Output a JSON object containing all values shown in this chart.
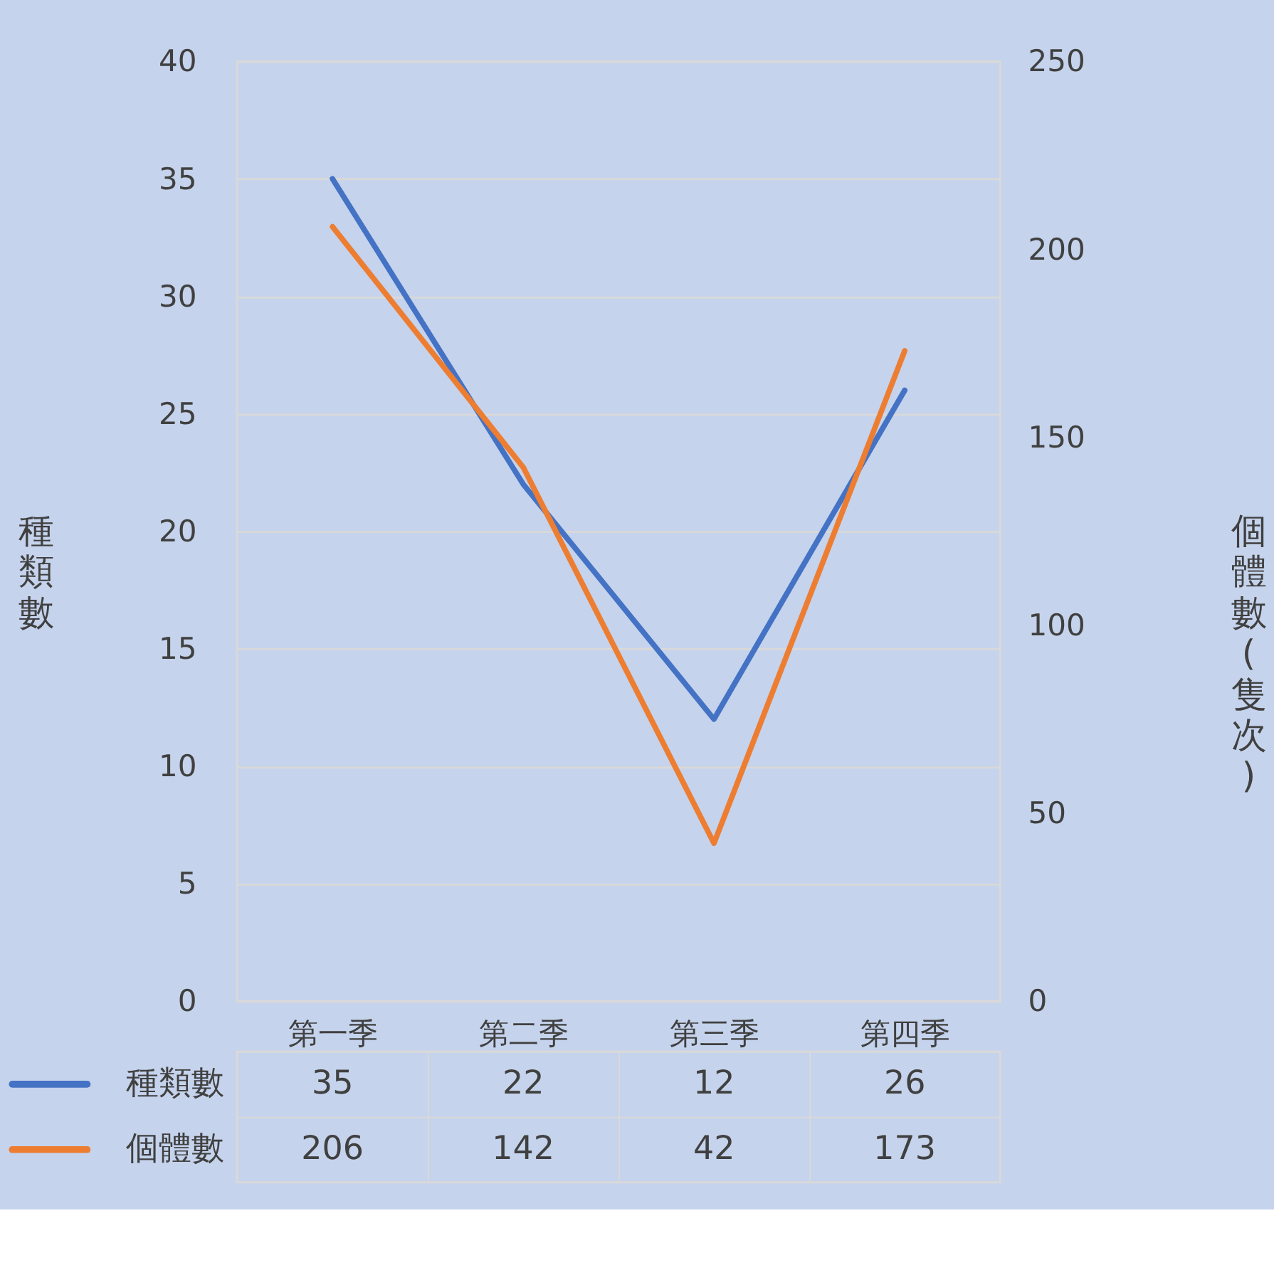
{
  "chart_data": {
    "type": "line",
    "categories": [
      "第一季",
      "第二季",
      "第三季",
      "第四季"
    ],
    "ylabel": "種類數",
    "y2label": "個體數(隻次)",
    "series": [
      {
        "name": "種類數",
        "color": "#4472c4",
        "values": [
          35,
          22,
          12,
          26
        ]
      },
      {
        "name": "個體數",
        "color": "#ed7d31",
        "values": [
          206,
          142,
          42,
          173
        ],
        "axis": "y2"
      }
    ],
    "ylim": [
      0,
      40
    ],
    "yticks": [
      0,
      5,
      10,
      15,
      20,
      25,
      30,
      35,
      40
    ],
    "y2lim": [
      0,
      250
    ],
    "y2ticks": [
      0,
      50,
      100,
      150,
      200,
      250
    ],
    "grid": "y",
    "legend": "bottom",
    "data_labels": true,
    "marker": "none",
    "line_style": "solid"
  }
}
